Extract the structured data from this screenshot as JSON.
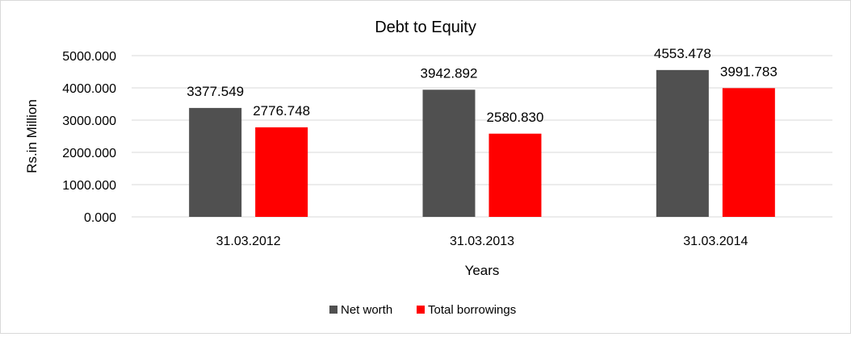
{
  "chart_data": {
    "type": "bar",
    "title": "Debt to Equity",
    "xlabel": "Years",
    "ylabel": "Rs.in Million",
    "categories": [
      "31.03.2012",
      "31.03.2013",
      "31.03.2014"
    ],
    "series": [
      {
        "name": "Net worth",
        "color": "#505050",
        "values": [
          3377.549,
          3942.892,
          4553.478
        ],
        "labels": [
          "3377.549",
          "3942.892",
          "4553.478"
        ]
      },
      {
        "name": "Total borrowings",
        "color": "#ff0000",
        "values": [
          2776.748,
          2580.83,
          3991.783
        ],
        "labels": [
          "2776.748",
          "2580.830",
          "3991.783"
        ]
      }
    ],
    "ylim": [
      0,
      5000
    ],
    "yticks": [
      "0.000",
      "1000.000",
      "2000.000",
      "3000.000",
      "4000.000",
      "5000.000"
    ],
    "grid": true,
    "legend_position": "bottom"
  }
}
